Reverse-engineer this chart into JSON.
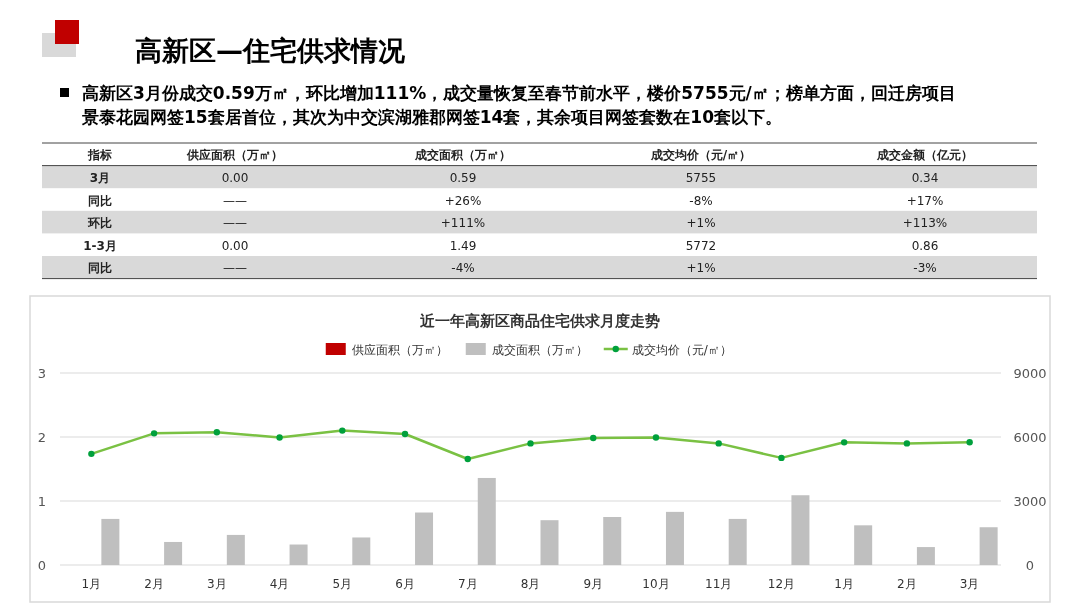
{
  "chart_data": [
    {
      "type": "other",
      "title": "高新区—住宅供求情况",
      "subtitle": "高新区3月份成交0.59万㎡，环比增加111%，成交量恢复至春节前水平，楼价5755元/㎡；榜单方面，回迁房项目景泰花园网签15套居首位，其次为中交滨湖雅郡网签14套，其余项目网签套数在10套以下。",
      "annotations": [
        "指标",
        "供应面积（万㎡）",
        "成交面积（万㎡）",
        "成交均价（元/㎡）",
        "成交金额（亿元）",
        "3月",
        "0.00",
        "0.59",
        "5755",
        "0.34",
        "同比",
        "——",
        "+26%",
        "-8%",
        "+17%",
        "环比",
        "——",
        "+111%",
        "+1%",
        "+113%",
        "1-3月",
        "0.00",
        "1.49",
        "5772",
        "0.86",
        "同比",
        "——",
        "-4%",
        "+1%",
        "-3%"
      ]
    },
    {
      "type": "bar",
      "title": "近一年高新区商品住宅供求月度走势",
      "categories": [
        "1月",
        "2月",
        "3月",
        "4月",
        "5月",
        "6月",
        "7月",
        "8月",
        "9月",
        "10月",
        "11月",
        "12月",
        "1月",
        "2月",
        "3月"
      ],
      "series": [
        {
          "name": "供应面积（万㎡）",
          "type": "bar",
          "color": "#c00000",
          "values": [
            0,
            0,
            0,
            0,
            0,
            0,
            0,
            0,
            0,
            0,
            0,
            0,
            0,
            0,
            0
          ]
        },
        {
          "name": "成交面积（万㎡）",
          "type": "bar",
          "color": "#bfbfbf",
          "values": [
            0.72,
            0.36,
            0.47,
            0.32,
            0.43,
            0.82,
            1.36,
            0.7,
            0.75,
            0.83,
            0.72,
            1.09,
            0.62,
            0.28,
            0.59
          ]
        },
        {
          "name": "成交均价（元/㎡）",
          "type": "line",
          "axis": "y2",
          "color": "#7ac143",
          "values": [
            5210,
            6170,
            6220,
            5980,
            6300,
            6140,
            4970,
            5700,
            5950,
            5980,
            5700,
            5020,
            5750,
            5700,
            5755
          ]
        }
      ],
      "ylim": [
        0,
        3
      ],
      "yticks": [
        0,
        1,
        2,
        3
      ],
      "y2lim": [
        0,
        9000
      ],
      "y2ticks": [
        0,
        3000,
        6000,
        9000
      ],
      "grid": "y",
      "legend": "top",
      "marker": "circle"
    }
  ]
}
